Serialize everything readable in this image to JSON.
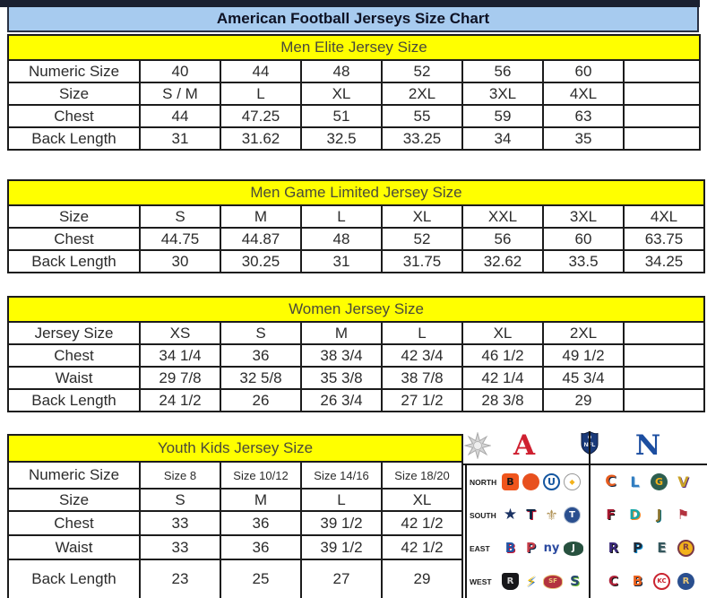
{
  "page_title": "American Football Jerseys Size Chart",
  "colors": {
    "title_bar_blue": "#a7cbef",
    "section_header_yellow": "#ffff00",
    "table_border_dark": "#1c1c1c",
    "afc_red": "#cf2030",
    "nfc_blue": "#1c4ea0",
    "nfl_shield_navy": "#1a3a7a"
  },
  "tables": [
    {
      "title": "Men Elite Jersey Size",
      "rows": [
        {
          "label": "Numeric Size",
          "cells": [
            "40",
            "44",
            "48",
            "52",
            "56",
            "60",
            ""
          ]
        },
        {
          "label": "Size",
          "cells": [
            "S / M",
            "L",
            "XL",
            "2XL",
            "3XL",
            "4XL",
            ""
          ]
        },
        {
          "label": "Chest",
          "cells": [
            "44",
            "47.25",
            "51",
            "55",
            "59",
            "63",
            ""
          ]
        },
        {
          "label": "Back Length",
          "cells": [
            "31",
            "31.62",
            "32.5",
            "33.25",
            "34",
            "35",
            ""
          ]
        }
      ]
    },
    {
      "title": "Men Game Limited Jersey Size",
      "rows": [
        {
          "label": "Size",
          "cells": [
            "S",
            "M",
            "L",
            "XL",
            "XXL",
            "3XL",
            "4XL"
          ]
        },
        {
          "label": "Chest",
          "cells": [
            "44.75",
            "44.87",
            "48",
            "52",
            "56",
            "60",
            "63.75"
          ]
        },
        {
          "label": "Back Length",
          "cells": [
            "30",
            "30.25",
            "31",
            "31.75",
            "32.62",
            "33.5",
            "34.25"
          ]
        }
      ]
    },
    {
      "title": "Women Jersey Size",
      "rows": [
        {
          "label": "Jersey Size",
          "cells": [
            "XS",
            "S",
            "M",
            "L",
            "XL",
            "2XL",
            ""
          ]
        },
        {
          "label": "Chest",
          "cells": [
            "34 1/4",
            "36",
            "38 3/4",
            "42 3/4",
            "46 1/2",
            "49 1/2",
            ""
          ]
        },
        {
          "label": "Waist",
          "cells": [
            "29 7/8",
            "32 5/8",
            "35 3/8",
            "38 7/8",
            "42 1/4",
            "45 3/4",
            ""
          ]
        },
        {
          "label": "Back Length",
          "cells": [
            "24 1/2",
            "26",
            "26 3/4",
            "27 1/2",
            "28 3/8",
            "29",
            ""
          ]
        }
      ]
    },
    {
      "title": "Youth Kids Jersey Size",
      "rows": [
        {
          "label": "Numeric Size",
          "cells": [
            "Size 8",
            "Size 10/12",
            "Size 14/16",
            "Size 18/20"
          ]
        },
        {
          "label": "Size",
          "cells": [
            "S",
            "M",
            "L",
            "XL"
          ]
        },
        {
          "label": "Chest",
          "cells": [
            "33",
            "36",
            "39 1/2",
            "42 1/2"
          ]
        },
        {
          "label": "Waist",
          "cells": [
            "33",
            "36",
            "39 1/2",
            "42 1/2"
          ]
        },
        {
          "label": "Back Length",
          "cells": [
            "23",
            "25",
            "27",
            "29"
          ]
        }
      ]
    }
  ],
  "logo_panel": {
    "conference_a_label": "A",
    "conference_n_label": "N",
    "nfl_shield_label": "NFL",
    "rows": [
      {
        "label": "NORTH",
        "afc": [
          {
            "team": "bengals",
            "shape": "square",
            "bg": "#f0551c",
            "fg": "#161616",
            "glyph": "B",
            "fs": 11
          },
          {
            "team": "browns",
            "shape": "circle",
            "bg": "#e8501e",
            "fg": "#7a4a24",
            "glyph": "",
            "fs": 9
          },
          {
            "team": "colts",
            "shape": "circle",
            "bg": "#ffffff",
            "fg": "#1456a0",
            "glyph": "U",
            "fs": 11,
            "border": "2px solid #1456a0"
          },
          {
            "team": "steelers",
            "shape": "circle",
            "bg": "#ffffff",
            "fg": "#f3b21a",
            "glyph": "◆",
            "fs": 8,
            "border": "1px solid #999999"
          }
        ],
        "nfc": [
          {
            "team": "bears",
            "shape": "text",
            "bg": "",
            "fg": "#e65c1f",
            "glyph": "C",
            "fs": 17,
            "sh": "#0b2340"
          },
          {
            "team": "lions",
            "shape": "text",
            "bg": "",
            "fg": "#2f7cc0",
            "glyph": "L",
            "fs": 16,
            "sh": "#9fc4e2"
          },
          {
            "team": "packers",
            "shape": "circle",
            "bg": "#2c5e4f",
            "fg": "#f3b21a",
            "glyph": "G",
            "fs": 11
          },
          {
            "team": "vikings",
            "shape": "text",
            "bg": "",
            "fg": "#c9a227",
            "glyph": "V",
            "fs": 16,
            "sh": "#582c83"
          }
        ]
      },
      {
        "label": "SOUTH",
        "afc": [
          {
            "team": "cowboys",
            "shape": "text",
            "bg": "",
            "fg": "#1b3263",
            "glyph": "★",
            "fs": 17
          },
          {
            "team": "texans",
            "shape": "text",
            "bg": "",
            "fg": "#0b2340",
            "glyph": "T",
            "fs": 15,
            "sh": "#c41230"
          },
          {
            "team": "saints",
            "shape": "text",
            "bg": "",
            "fg": "#b09256",
            "glyph": "⚜",
            "fs": 16
          },
          {
            "team": "titans",
            "shape": "circle",
            "bg": "#2a4f8f",
            "fg": "#ffffff",
            "glyph": "T",
            "fs": 10,
            "border": "1px solid #b8c4d6"
          }
        ],
        "nfc": [
          {
            "team": "falcons",
            "shape": "text",
            "bg": "",
            "fg": "#a71930",
            "glyph": "F",
            "fs": 15,
            "sh": "#111111"
          },
          {
            "team": "dolphins",
            "shape": "text",
            "bg": "",
            "fg": "#19a6a6",
            "glyph": "D",
            "fs": 15,
            "sh": "#f58220"
          },
          {
            "team": "jaguars",
            "shape": "text",
            "bg": "",
            "fg": "#8a7430",
            "glyph": "J",
            "fs": 15,
            "sh": "#006778"
          },
          {
            "team": "buccaneers",
            "shape": "text",
            "bg": "",
            "fg": "#b3333f",
            "glyph": "⚑",
            "fs": 15
          }
        ]
      },
      {
        "label": "EAST",
        "afc": [
          {
            "team": "bills",
            "shape": "text",
            "bg": "",
            "fg": "#2456a5",
            "glyph": "B",
            "fs": 15,
            "sh": "#c41230"
          },
          {
            "team": "patriots",
            "shape": "text",
            "bg": "",
            "fg": "#c43b47",
            "glyph": "P",
            "fs": 15,
            "sh": "#002244"
          },
          {
            "team": "giants",
            "shape": "text",
            "bg": "",
            "fg": "#2b4aa0",
            "glyph": "ny",
            "fs": 13
          },
          {
            "team": "jets",
            "shape": "oval",
            "bg": "#27513f",
            "fg": "#ffffff",
            "glyph": "J",
            "fs": 10
          }
        ],
        "nfc": [
          {
            "team": "ravens",
            "shape": "text",
            "bg": "",
            "fg": "#3b2a7a",
            "glyph": "R",
            "fs": 15,
            "sh": "#111111"
          },
          {
            "team": "panthers",
            "shape": "text",
            "bg": "",
            "fg": "#1f2937",
            "glyph": "P",
            "fs": 15,
            "sh": "#0085ca"
          },
          {
            "team": "eagles",
            "shape": "text",
            "bg": "",
            "fg": "#33565c",
            "glyph": "E",
            "fs": 15,
            "sh": "#b5bbbd"
          },
          {
            "team": "redskins",
            "shape": "circle",
            "bg": "#f3b21a",
            "fg": "#7a3845",
            "glyph": "R",
            "fs": 9,
            "border": "2px solid #7a3845"
          }
        ]
      },
      {
        "label": "WEST",
        "afc": [
          {
            "team": "raiders",
            "shape": "shield",
            "bg": "#17171a",
            "fg": "#cfcfcf",
            "glyph": "R",
            "fs": 10
          },
          {
            "team": "chargers",
            "shape": "text",
            "bg": "",
            "fg": "#f4c20d",
            "glyph": "⚡",
            "fs": 16,
            "sh": "#2a6ebb"
          },
          {
            "team": "fortyniners",
            "shape": "oval",
            "bg": "#b3333f",
            "fg": "#e9c878",
            "glyph": "SF",
            "fs": 7,
            "border": "1px solid #e9c878"
          },
          {
            "team": "seahawks",
            "shape": "text",
            "bg": "",
            "fg": "#27486e",
            "glyph": "S",
            "fs": 15,
            "sh": "#69be28"
          }
        ],
        "nfc": [
          {
            "team": "cardinals",
            "shape": "text",
            "bg": "",
            "fg": "#b0233a",
            "glyph": "C",
            "fs": 15,
            "sh": "#111111"
          },
          {
            "team": "broncos",
            "shape": "text",
            "bg": "",
            "fg": "#e8601c",
            "glyph": "B",
            "fs": 15,
            "sh": "#0b2340"
          },
          {
            "team": "chiefs",
            "shape": "circle",
            "bg": "#ffffff",
            "fg": "#ca2430",
            "glyph": "KC",
            "fs": 7,
            "border": "2px solid #ca2430"
          },
          {
            "team": "rams",
            "shape": "circle",
            "bg": "#2a4f8f",
            "fg": "#e9c878",
            "glyph": "R",
            "fs": 10
          }
        ]
      }
    ]
  }
}
